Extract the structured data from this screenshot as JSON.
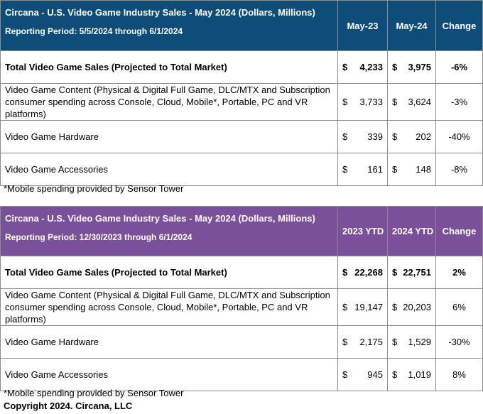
{
  "tables": [
    {
      "title": "Circana - U.S. Video Game Industry Sales - May 2024 (Dollars, Millions)",
      "period": "Reporting Period: 5/5/2024 through 6/1/2024",
      "col1": "May-23",
      "col2": "May-24",
      "col3": "Change",
      "header_color": "#0e4d7a",
      "rows": [
        {
          "label": "Total Video Game Sales (Projected to Total Market)",
          "v1": "4,233",
          "v2": "3,975",
          "change": "-6%"
        },
        {
          "label": "Video Game Content (Physical & Digital Full Game, DLC/MTX and Subscription consumer spending across Console, Cloud, Mobile*, Portable, PC and VR platforms)",
          "v1": "3,733",
          "v2": "3,624",
          "change": "-3%"
        },
        {
          "label": "Video Game Hardware",
          "v1": "339",
          "v2": "202",
          "change": "-40%"
        },
        {
          "label": "Video Game Accessories",
          "v1": "161",
          "v2": "148",
          "change": "-8%"
        }
      ],
      "note": "*Mobile spending provided by Sensor Tower"
    },
    {
      "title": "Circana - U.S. Video Game Industry Sales - May 2024 (Dollars, Millions)",
      "period": "Reporting Period: 12/30/2023 through 6/1/2024",
      "col1": "2023 YTD",
      "col2": "2024 YTD",
      "col3": "Change",
      "header_color": "#7b509a",
      "rows": [
        {
          "label": "Total Video Game Sales (Projected to Total Market)",
          "v1": "22,268",
          "v2": "22,751",
          "change": "2%"
        },
        {
          "label": "Video Game Content (Physical & Digital Full Game, DLC/MTX and Subscription consumer spending across Console, Cloud, Mobile*, Portable, PC and VR platforms)",
          "v1": "19,147",
          "v2": "20,203",
          "change": "6%"
        },
        {
          "label": "Video Game Hardware",
          "v1": "2,175",
          "v2": "1,529",
          "change": "-30%"
        },
        {
          "label": "Video Game Accessories",
          "v1": "945",
          "v2": "1,019",
          "change": "8%"
        }
      ],
      "note": "*Mobile spending provided by Sensor Tower"
    }
  ],
  "currency": "$",
  "copyright": "Copyright 2024. Circana, LLC"
}
